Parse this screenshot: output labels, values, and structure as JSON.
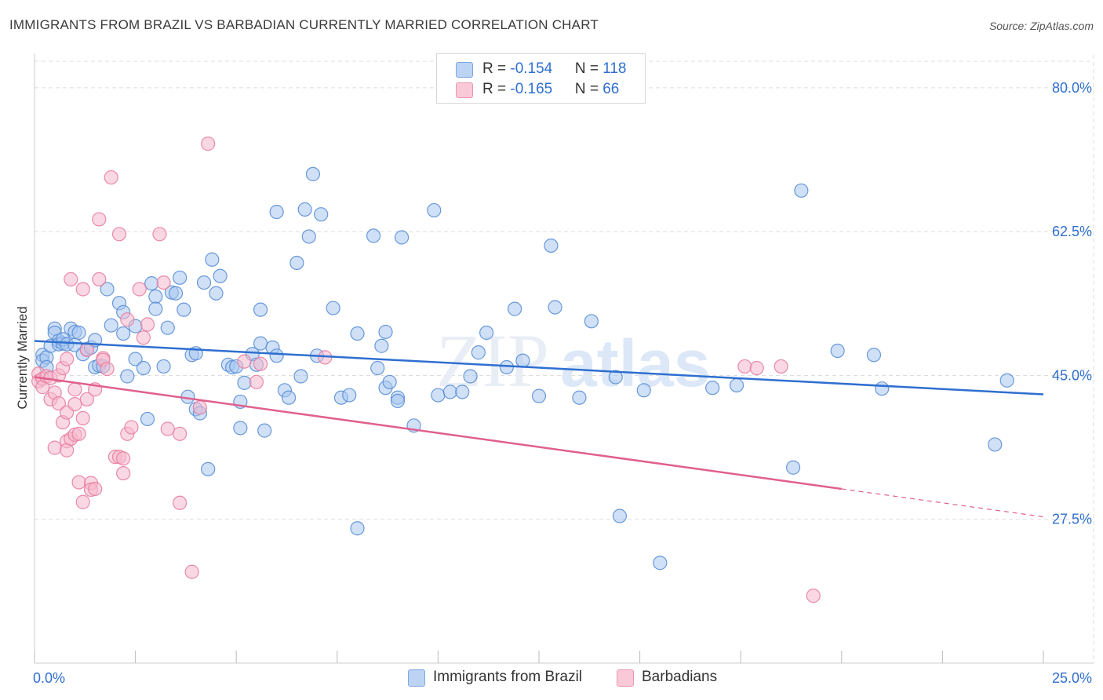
{
  "header": {
    "title": "IMMIGRANTS FROM BRAZIL VS BARBADIAN CURRENTLY MARRIED CORRELATION CHART",
    "source": "Source: ZipAtlas.com"
  },
  "legend_top": {
    "rows": [
      {
        "r_label": "R = ",
        "r_value": "-0.154",
        "n_label": "N = ",
        "n_value": "118"
      },
      {
        "r_label": "R = ",
        "r_value": "-0.165",
        "n_label": "N = ",
        "n_value": "66"
      }
    ]
  },
  "legend_bottom": {
    "items": [
      "Immigrants from Brazil",
      "Barbadians"
    ]
  },
  "watermark": {
    "zip": "ZIP",
    "atlas": "atlas"
  },
  "colors": {
    "brazil_fill": "#a8c6f0",
    "brazil_stroke": "#5b8fd6",
    "brazil_line": "#2f6fd0",
    "barb_fill": "#f6b8cc",
    "barb_stroke": "#e87ea0",
    "barb_line": "#e0608e",
    "axis_text": "#2f6fd0",
    "grid": "#dddddd"
  },
  "chart_data": {
    "type": "scatter",
    "xlabel": "",
    "ylabel": "Currently Married",
    "xlim": [
      0,
      25
    ],
    "ylim": [
      10,
      84
    ],
    "x_tick_labels": [
      "0.0%",
      "25.0%"
    ],
    "y_ticks": [
      27.5,
      45.0,
      62.5,
      80.0
    ],
    "y_tick_labels": [
      "27.5%",
      "45.0%",
      "62.5%",
      "80.0%"
    ],
    "grid": true,
    "series": [
      {
        "name": "Immigrants from Brazil",
        "trend": {
          "x": [
            0,
            25
          ],
          "y": [
            49.2,
            42.7
          ],
          "dashed_from": null
        },
        "points": [
          [
            0.2,
            47.5
          ],
          [
            0.2,
            46.8
          ],
          [
            0.3,
            47.2
          ],
          [
            0.3,
            46.0
          ],
          [
            0.4,
            48.6
          ],
          [
            0.5,
            50.7
          ],
          [
            0.5,
            50.2
          ],
          [
            0.6,
            49.2
          ],
          [
            0.6,
            48.8
          ],
          [
            0.7,
            48.9
          ],
          [
            0.7,
            49.4
          ],
          [
            0.8,
            48.8
          ],
          [
            0.9,
            50.7
          ],
          [
            1.0,
            50.3
          ],
          [
            1.0,
            48.7
          ],
          [
            1.1,
            50.2
          ],
          [
            1.2,
            47.6
          ],
          [
            1.3,
            48.2
          ],
          [
            1.4,
            48.4
          ],
          [
            1.5,
            49.3
          ],
          [
            1.5,
            46.0
          ],
          [
            1.6,
            46.2
          ],
          [
            1.7,
            46.1
          ],
          [
            1.8,
            55.5
          ],
          [
            1.9,
            51.1
          ],
          [
            2.1,
            53.8
          ],
          [
            2.2,
            52.7
          ],
          [
            2.2,
            50.1
          ],
          [
            2.3,
            44.9
          ],
          [
            2.5,
            47.0
          ],
          [
            2.5,
            51.0
          ],
          [
            2.7,
            45.9
          ],
          [
            2.8,
            39.7
          ],
          [
            2.9,
            56.2
          ],
          [
            3.0,
            54.6
          ],
          [
            3.0,
            53.1
          ],
          [
            3.2,
            46.1
          ],
          [
            3.3,
            50.8
          ],
          [
            3.4,
            55.1
          ],
          [
            3.5,
            55.0
          ],
          [
            3.6,
            56.9
          ],
          [
            3.7,
            53.0
          ],
          [
            3.8,
            42.4
          ],
          [
            3.9,
            47.5
          ],
          [
            4.0,
            47.7
          ],
          [
            4.0,
            40.9
          ],
          [
            4.1,
            40.4
          ],
          [
            4.2,
            56.3
          ],
          [
            4.3,
            33.6
          ],
          [
            4.4,
            59.1
          ],
          [
            4.5,
            55.0
          ],
          [
            4.6,
            57.1
          ],
          [
            4.8,
            46.3
          ],
          [
            4.9,
            46.0
          ],
          [
            5.0,
            46.1
          ],
          [
            5.1,
            38.6
          ],
          [
            5.1,
            41.8
          ],
          [
            5.2,
            44.1
          ],
          [
            5.4,
            47.6
          ],
          [
            5.5,
            46.3
          ],
          [
            5.6,
            53.0
          ],
          [
            5.6,
            48.9
          ],
          [
            5.7,
            38.3
          ],
          [
            5.9,
            48.4
          ],
          [
            6.0,
            47.4
          ],
          [
            6.0,
            64.9
          ],
          [
            6.2,
            43.2
          ],
          [
            6.3,
            42.3
          ],
          [
            6.5,
            58.7
          ],
          [
            6.6,
            44.9
          ],
          [
            6.7,
            65.2
          ],
          [
            6.8,
            61.9
          ],
          [
            6.9,
            69.5
          ],
          [
            7.0,
            47.4
          ],
          [
            7.1,
            64.6
          ],
          [
            7.4,
            53.2
          ],
          [
            7.6,
            42.3
          ],
          [
            7.8,
            42.6
          ],
          [
            8.0,
            50.1
          ],
          [
            8.0,
            26.4
          ],
          [
            8.4,
            62.0
          ],
          [
            8.5,
            45.9
          ],
          [
            8.6,
            48.6
          ],
          [
            8.7,
            43.5
          ],
          [
            8.7,
            50.3
          ],
          [
            8.8,
            44.2
          ],
          [
            9.0,
            42.3
          ],
          [
            9.0,
            41.9
          ],
          [
            9.1,
            61.8
          ],
          [
            9.4,
            38.9
          ],
          [
            9.9,
            65.1
          ],
          [
            10.0,
            42.6
          ],
          [
            10.3,
            43.0
          ],
          [
            10.8,
            44.9
          ],
          [
            11.2,
            50.2
          ],
          [
            11.7,
            46.0
          ],
          [
            11.9,
            53.1
          ],
          [
            12.5,
            42.5
          ],
          [
            12.8,
            60.8
          ],
          [
            12.9,
            53.3
          ],
          [
            13.5,
            42.3
          ],
          [
            13.8,
            51.6
          ],
          [
            14.4,
            44.8
          ],
          [
            14.5,
            27.9
          ],
          [
            15.1,
            43.2
          ],
          [
            15.5,
            22.2
          ],
          [
            16.8,
            43.5
          ],
          [
            17.4,
            43.8
          ],
          [
            18.8,
            33.8
          ],
          [
            19.0,
            67.5
          ],
          [
            20.8,
            47.5
          ],
          [
            19.9,
            48.0
          ],
          [
            23.8,
            36.6
          ],
          [
            21.0,
            43.4
          ],
          [
            24.1,
            44.4
          ],
          [
            10.6,
            43.0
          ],
          [
            11.0,
            47.8
          ],
          [
            12.1,
            46.8
          ]
        ]
      },
      {
        "name": "Barbadians",
        "trend": {
          "x": [
            0,
            20
          ],
          "y": [
            44.8,
            31.2
          ],
          "dashed_from": 20,
          "dashed_to": [
            25,
            27.8
          ]
        },
        "points": [
          [
            0.1,
            45.2
          ],
          [
            0.1,
            44.3
          ],
          [
            0.2,
            44.6
          ],
          [
            0.2,
            43.6
          ],
          [
            0.3,
            44.9
          ],
          [
            0.4,
            42.1
          ],
          [
            0.4,
            44.7
          ],
          [
            0.5,
            36.2
          ],
          [
            0.5,
            42.9
          ],
          [
            0.6,
            41.6
          ],
          [
            0.6,
            45.0
          ],
          [
            0.7,
            45.9
          ],
          [
            0.7,
            39.3
          ],
          [
            0.8,
            40.5
          ],
          [
            0.8,
            47.0
          ],
          [
            0.8,
            37.0
          ],
          [
            0.8,
            35.9
          ],
          [
            0.9,
            56.7
          ],
          [
            0.9,
            37.3
          ],
          [
            1.0,
            43.3
          ],
          [
            1.0,
            37.8
          ],
          [
            1.0,
            41.5
          ],
          [
            1.1,
            37.9
          ],
          [
            1.1,
            32.0
          ],
          [
            1.2,
            55.5
          ],
          [
            1.2,
            39.8
          ],
          [
            1.2,
            29.6
          ],
          [
            1.3,
            42.1
          ],
          [
            1.3,
            48.1
          ],
          [
            1.4,
            31.9
          ],
          [
            1.4,
            31.1
          ],
          [
            1.5,
            31.2
          ],
          [
            1.5,
            43.3
          ],
          [
            1.6,
            56.7
          ],
          [
            1.6,
            64.0
          ],
          [
            1.7,
            47.1
          ],
          [
            1.7,
            46.9
          ],
          [
            1.8,
            45.8
          ],
          [
            1.9,
            69.1
          ],
          [
            2.0,
            35.1
          ],
          [
            2.1,
            35.1
          ],
          [
            2.1,
            62.2
          ],
          [
            2.2,
            33.1
          ],
          [
            2.2,
            34.9
          ],
          [
            2.3,
            51.8
          ],
          [
            2.3,
            37.9
          ],
          [
            2.4,
            38.7
          ],
          [
            2.6,
            55.5
          ],
          [
            2.7,
            49.6
          ],
          [
            2.8,
            51.2
          ],
          [
            3.1,
            62.2
          ],
          [
            3.2,
            56.3
          ],
          [
            3.3,
            38.5
          ],
          [
            3.6,
            37.9
          ],
          [
            3.6,
            29.5
          ],
          [
            3.9,
            21.1
          ],
          [
            4.1,
            41.1
          ],
          [
            5.2,
            46.7
          ],
          [
            7.2,
            47.2
          ],
          [
            17.6,
            46.1
          ],
          [
            5.6,
            46.4
          ],
          [
            5.5,
            44.2
          ],
          [
            18.5,
            46.1
          ],
          [
            19.3,
            18.2
          ],
          [
            17.9,
            45.9
          ],
          [
            4.3,
            73.2
          ]
        ]
      }
    ]
  }
}
